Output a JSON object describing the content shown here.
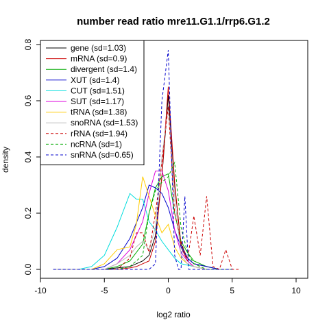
{
  "chart_data": {
    "type": "line",
    "title": "number read ratio mre11.G1.1/rrp6.G1.2",
    "xlabel": "log2 ratio",
    "ylabel": "density",
    "xlim": [
      -10,
      10
    ],
    "ylim": [
      0,
      0.8
    ],
    "xticks": [
      "-10",
      "-5",
      "0",
      "5",
      "10"
    ],
    "yticks": [
      "0.0",
      "0.2",
      "0.4",
      "0.6",
      "0.8"
    ],
    "grid": false,
    "legend_position": "top-left",
    "series": [
      {
        "name": "gene (sd=1.03)",
        "color": "#000000",
        "dash": "solid",
        "x": [
          -9,
          -8,
          -7,
          -6,
          -5,
          -4,
          -3,
          -2.5,
          -2,
          -1.5,
          -1,
          -0.5,
          0,
          0.5,
          1,
          1.5,
          2,
          3,
          4,
          5
        ],
        "y": [
          0,
          0,
          0,
          0,
          0,
          0.005,
          0.01,
          0.02,
          0.03,
          0.05,
          0.12,
          0.33,
          0.62,
          0.3,
          0.09,
          0.04,
          0.02,
          0.01,
          0,
          0
        ]
      },
      {
        "name": "mRNA (sd=0.9)",
        "color": "#cc0000",
        "dash": "solid",
        "x": [
          -9,
          -8,
          -7,
          -6,
          -5,
          -4,
          -3,
          -2.5,
          -2,
          -1.5,
          -1,
          -0.5,
          0,
          0.5,
          1,
          1.5,
          2,
          3,
          4,
          5
        ],
        "y": [
          0,
          0,
          0,
          0,
          0,
          0,
          0.005,
          0.01,
          0.02,
          0.03,
          0.1,
          0.33,
          0.65,
          0.31,
          0.08,
          0.03,
          0.01,
          0,
          0,
          0
        ]
      },
      {
        "name": "divergent (sd=1.4)",
        "color": "#00aa00",
        "dash": "solid",
        "x": [
          -9,
          -8,
          -7,
          -6,
          -5,
          -4,
          -3,
          -2,
          -1.5,
          -1,
          -0.5,
          0,
          0.5,
          1,
          1.5,
          2,
          3,
          4,
          5
        ],
        "y": [
          0,
          0,
          0,
          0,
          0,
          0.01,
          0.03,
          0.09,
          0.2,
          0.29,
          0.33,
          0.34,
          0.2,
          0.1,
          0.06,
          0.03,
          0.01,
          0,
          0
        ]
      },
      {
        "name": "XUT (sd=1.4)",
        "color": "#0000cc",
        "dash": "solid",
        "x": [
          -9,
          -8,
          -7,
          -6,
          -5,
          -4,
          -3,
          -2,
          -1.5,
          -1,
          -0.5,
          0,
          0.5,
          1,
          1.5,
          2,
          3,
          4,
          5
        ],
        "y": [
          0,
          0,
          0,
          0,
          0.01,
          0.04,
          0.11,
          0.22,
          0.3,
          0.29,
          0.27,
          0.22,
          0.14,
          0.08,
          0.04,
          0.02,
          0.01,
          0,
          0
        ]
      },
      {
        "name": "CUT (sd=1.51)",
        "color": "#00dddd",
        "dash": "solid",
        "x": [
          -9,
          -8,
          -7,
          -6,
          -5,
          -4,
          -3,
          -2.5,
          -2,
          -1.5,
          -1,
          -0.5,
          0,
          0.5,
          1,
          2,
          3,
          4,
          5
        ],
        "y": [
          0,
          0,
          0,
          0.01,
          0.05,
          0.15,
          0.27,
          0.25,
          0.25,
          0.17,
          0.14,
          0.1,
          0.07,
          0.04,
          0.02,
          0.01,
          0,
          0,
          0
        ]
      },
      {
        "name": "SUT (sd=1.17)",
        "color": "#dd00dd",
        "dash": "solid",
        "x": [
          -9,
          -8,
          -7,
          -6,
          -5,
          -4,
          -3,
          -2,
          -1.5,
          -1,
          -0.5,
          0,
          0.5,
          1,
          1.5,
          2,
          3,
          4,
          5
        ],
        "y": [
          0,
          0,
          0,
          0,
          0,
          0.02,
          0.07,
          0.17,
          0.27,
          0.35,
          0.35,
          0.28,
          0.14,
          0.06,
          0.03,
          0.01,
          0,
          0,
          0
        ]
      },
      {
        "name": "tRNA (sd=1.38)",
        "color": "#ffcc00",
        "dash": "solid",
        "x": [
          -9,
          -8,
          -7,
          -6,
          -5,
          -4,
          -3,
          -2.5,
          -2,
          -1.5,
          -1,
          -0.5,
          0,
          0.5,
          1,
          1.5,
          2,
          3,
          4,
          5
        ],
        "y": [
          0,
          0,
          0,
          0,
          0.02,
          0.07,
          0.08,
          0.16,
          0.33,
          0.26,
          0.19,
          0.13,
          0.16,
          0.08,
          0.04,
          0.02,
          0.01,
          0,
          0,
          0
        ]
      },
      {
        "name": "snoRNA (sd=1.53)",
        "color": "#bbbbbb",
        "dash": "solid",
        "x": [
          -9,
          -8,
          -7,
          -6,
          -5,
          -4,
          -3,
          -2.5,
          -2,
          -1.5,
          -1,
          -0.5,
          0,
          0.5,
          1,
          1.5,
          2,
          3,
          4,
          5
        ],
        "y": [
          0,
          0,
          0,
          0,
          0,
          0.02,
          0.05,
          0.08,
          0.1,
          0.07,
          0.15,
          0.4,
          0.58,
          0.26,
          0.05,
          0.02,
          0.01,
          0,
          0,
          0
        ]
      },
      {
        "name": "rRNA (sd=1.94)",
        "color": "#cc0000",
        "dash": "dashed",
        "x": [
          -9,
          -8,
          -7,
          -6,
          -5,
          -4,
          -3,
          -2.5,
          -2,
          -1.5,
          -1,
          -0.5,
          0,
          0.5,
          1,
          1.5,
          2,
          2.5,
          3,
          3.5,
          4,
          4.5,
          5,
          5.5
        ],
        "y": [
          0,
          0,
          0,
          0,
          0,
          0,
          0.04,
          0.13,
          0.13,
          0.06,
          0.2,
          0.38,
          0.58,
          0.2,
          0.1,
          0.03,
          0.19,
          0.05,
          0.26,
          0.01,
          0,
          0.07,
          0,
          0
        ]
      },
      {
        "name": "ncRNA (sd=1)",
        "color": "#00aa00",
        "dash": "dashed",
        "x": [
          -9,
          -8,
          -7,
          -6,
          -5,
          -4,
          -3,
          -2,
          -1.5,
          -1,
          -0.5,
          0,
          0.5,
          1,
          1.5,
          2,
          3,
          4,
          5
        ],
        "y": [
          0,
          0,
          0,
          0,
          0,
          0,
          0.01,
          0.05,
          0.2,
          0.28,
          0.31,
          0.33,
          0.38,
          0.15,
          0.06,
          0.02,
          0,
          0,
          0
        ]
      },
      {
        "name": "snRNA (sd=0.65)",
        "color": "#0000cc",
        "dash": "dashed",
        "x": [
          -9,
          -8,
          -7,
          -6,
          -5,
          -4,
          -3,
          -2,
          -1.5,
          -1,
          -0.5,
          0,
          0.5,
          0.8,
          1,
          1.3,
          1.6,
          2,
          3,
          4,
          5
        ],
        "y": [
          0,
          0,
          0,
          0,
          0,
          0,
          0,
          0,
          0,
          0.02,
          0.6,
          0.78,
          0.05,
          0,
          0,
          0.26,
          0,
          0,
          0,
          0,
          0
        ]
      }
    ]
  }
}
